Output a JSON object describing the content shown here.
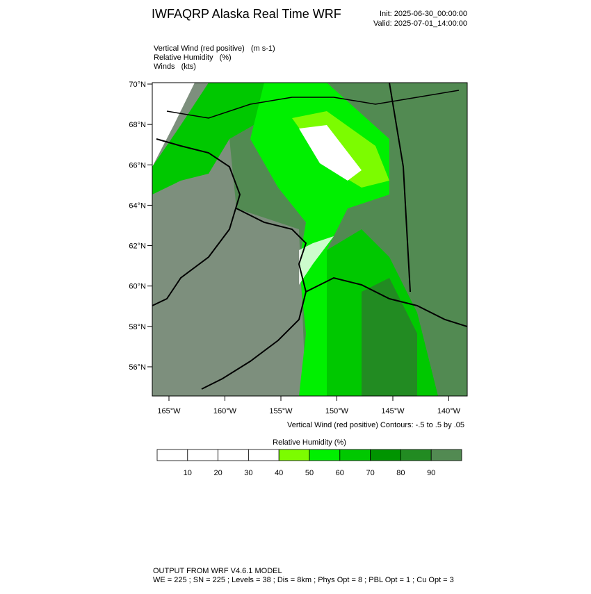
{
  "header": {
    "title": "IWFAQRP Alaska Real Time WRF",
    "init": "Init: 2025-06-30_00:00:00",
    "valid": "Valid: 2025-07-01_14:00:00"
  },
  "fields": [
    {
      "name": "Vertical Wind (red positive)",
      "units": "(m s-1)"
    },
    {
      "name": "Relative Humidity",
      "units": "(%)"
    },
    {
      "name": "Winds",
      "units": "(kts)"
    }
  ],
  "map": {
    "lat_ticks": [
      {
        "value": 70,
        "label": "70°N"
      },
      {
        "value": 68,
        "label": "68°N"
      },
      {
        "value": 66,
        "label": "66°N"
      },
      {
        "value": 64,
        "label": "64°N"
      },
      {
        "value": 62,
        "label": "62°N"
      },
      {
        "value": 60,
        "label": "60°N"
      },
      {
        "value": 58,
        "label": "58°N"
      },
      {
        "value": 56,
        "label": "56°N"
      }
    ],
    "lon_ticks": [
      {
        "value": -165,
        "label": "165°W"
      },
      {
        "value": -160,
        "label": "160°W"
      },
      {
        "value": -155,
        "label": "155°W"
      },
      {
        "value": -150,
        "label": "150°W"
      },
      {
        "value": -145,
        "label": "145°W"
      },
      {
        "value": -140,
        "label": "140°W"
      }
    ],
    "contour_note": "Vertical Wind (red positive) Contours: -.5 to .5 by .05"
  },
  "colorbar": {
    "title": "Relative Humidity  (%)",
    "levels": [
      10,
      20,
      30,
      40,
      50,
      60,
      70,
      80,
      90
    ],
    "colors": [
      "#ffffff",
      "#ffffff",
      "#ffffff",
      "#ffffff",
      "#7cfc00",
      "#00f000",
      "#00c800",
      "#009400",
      "#228b22",
      "#528a52"
    ]
  },
  "footer": {
    "line1": "OUTPUT FROM WRF V4.6.1 MODEL",
    "line2": "WE = 225 ; SN = 225 ; Levels = 38 ; Dis = 8km ; Phys Opt = 8 ; PBL Opt = 1 ; Cu Opt = 3"
  }
}
